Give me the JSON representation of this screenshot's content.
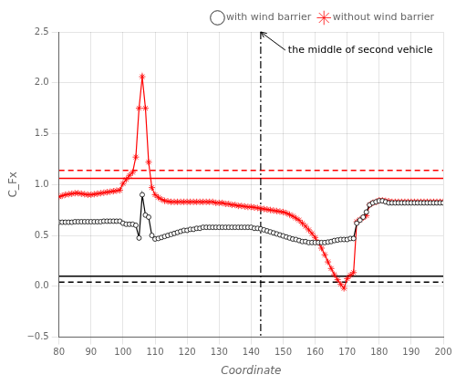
{
  "chart_data": {
    "type": "line",
    "xlabel": "Coordinate",
    "ylabel": "C_Fx",
    "xlim": [
      80,
      200
    ],
    "ylim": [
      -0.5,
      2.5
    ],
    "xticks": [
      80,
      90,
      100,
      110,
      120,
      130,
      140,
      150,
      160,
      170,
      180,
      190,
      200
    ],
    "yticks": [
      {
        "value": -0.5,
        "label": "−0.5"
      },
      {
        "value": 0.0,
        "label": "0.0"
      },
      0.5,
      {
        "value": 1.0,
        "label": "1.0"
      },
      1.5,
      {
        "value": 2.0,
        "label": "2.0"
      },
      2.5
    ],
    "grid": true,
    "legend": "upper right",
    "x": [
      80,
      81,
      82,
      83,
      84,
      85,
      86,
      87,
      88,
      89,
      90,
      91,
      92,
      93,
      94,
      95,
      96,
      97,
      98,
      99,
      100,
      101,
      102,
      103,
      104,
      105,
      106,
      107,
      108,
      109,
      110,
      111,
      112,
      113,
      114,
      115,
      116,
      117,
      118,
      119,
      120,
      121,
      122,
      123,
      124,
      125,
      126,
      127,
      128,
      129,
      130,
      131,
      132,
      133,
      134,
      135,
      136,
      137,
      138,
      139,
      140,
      141,
      142,
      143,
      144,
      145,
      146,
      147,
      148,
      149,
      150,
      151,
      152,
      153,
      154,
      155,
      156,
      157,
      158,
      159,
      160,
      161,
      162,
      163,
      164,
      165,
      166,
      167,
      168,
      169,
      170,
      171,
      172,
      173,
      174,
      175,
      176,
      177,
      178,
      179,
      180,
      181,
      182,
      183,
      184,
      185,
      186,
      187,
      188,
      189,
      190,
      191,
      192,
      193,
      194,
      195,
      196,
      197,
      198,
      199,
      200
    ],
    "series": [
      {
        "name": "with wind barrier",
        "color": "black",
        "marker": "circle",
        "line_style": "solid",
        "values": [
          0.63,
          0.63,
          0.63,
          0.63,
          0.63,
          0.635,
          0.635,
          0.635,
          0.635,
          0.635,
          0.635,
          0.635,
          0.635,
          0.635,
          0.64,
          0.64,
          0.64,
          0.64,
          0.64,
          0.64,
          0.62,
          0.61,
          0.61,
          0.61,
          0.6,
          0.475,
          0.9,
          0.7,
          0.68,
          0.5,
          0.465,
          0.47,
          0.48,
          0.49,
          0.5,
          0.51,
          0.52,
          0.53,
          0.54,
          0.55,
          0.55,
          0.56,
          0.56,
          0.57,
          0.57,
          0.58,
          0.58,
          0.58,
          0.58,
          0.58,
          0.58,
          0.58,
          0.58,
          0.58,
          0.58,
          0.58,
          0.58,
          0.58,
          0.58,
          0.58,
          0.58,
          0.57,
          0.57,
          0.565,
          0.555,
          0.545,
          0.535,
          0.525,
          0.515,
          0.505,
          0.495,
          0.485,
          0.475,
          0.465,
          0.46,
          0.45,
          0.44,
          0.44,
          0.43,
          0.43,
          0.43,
          0.43,
          0.43,
          0.43,
          0.435,
          0.44,
          0.45,
          0.455,
          0.46,
          0.46,
          0.46,
          0.47,
          0.47,
          0.62,
          0.65,
          0.68,
          0.73,
          0.8,
          0.82,
          0.83,
          0.84,
          0.84,
          0.83,
          0.82,
          0.82,
          0.82,
          0.82,
          0.82,
          0.82,
          0.82,
          0.82,
          0.82,
          0.82,
          0.82,
          0.82,
          0.82,
          0.82,
          0.82,
          0.82,
          0.82,
          0.82
        ]
      },
      {
        "name": "without wind barrier",
        "color": "red",
        "marker": "star",
        "line_style": "solid",
        "values": [
          0.88,
          0.89,
          0.9,
          0.905,
          0.91,
          0.915,
          0.915,
          0.91,
          0.905,
          0.9,
          0.9,
          0.905,
          0.91,
          0.915,
          0.92,
          0.925,
          0.93,
          0.935,
          0.94,
          0.945,
          1.01,
          1.05,
          1.09,
          1.12,
          1.27,
          1.75,
          2.06,
          1.75,
          1.22,
          0.97,
          0.9,
          0.875,
          0.855,
          0.84,
          0.835,
          0.83,
          0.83,
          0.83,
          0.83,
          0.83,
          0.83,
          0.83,
          0.83,
          0.83,
          0.83,
          0.83,
          0.83,
          0.83,
          0.83,
          0.82,
          0.82,
          0.82,
          0.81,
          0.81,
          0.8,
          0.8,
          0.79,
          0.79,
          0.785,
          0.78,
          0.78,
          0.775,
          0.77,
          0.765,
          0.76,
          0.755,
          0.75,
          0.745,
          0.74,
          0.735,
          0.73,
          0.72,
          0.705,
          0.69,
          0.67,
          0.65,
          0.62,
          0.59,
          0.555,
          0.52,
          0.48,
          0.43,
          0.375,
          0.31,
          0.24,
          0.175,
          0.115,
          0.065,
          0.02,
          -0.02,
          0.075,
          0.11,
          0.135,
          0.635,
          0.655,
          0.675,
          0.695,
          0.8,
          0.82,
          0.83,
          0.845,
          0.845,
          0.84,
          0.835,
          0.83,
          0.83,
          0.83,
          0.83,
          0.83,
          0.83,
          0.83,
          0.83,
          0.83,
          0.83,
          0.83,
          0.83,
          0.83,
          0.83,
          0.83,
          0.83,
          0.83
        ]
      }
    ],
    "hlines": [
      {
        "value": 1.06,
        "color": "red",
        "line_style": "solid"
      },
      {
        "value": 1.14,
        "color": "red",
        "line_style": "dashed"
      },
      {
        "value": 0.1,
        "color": "black",
        "line_style": "solid"
      },
      {
        "value": 0.04,
        "color": "black",
        "line_style": "dashed"
      }
    ],
    "vlines": [
      {
        "value": 143,
        "color": "black",
        "line_style": "dashdot"
      }
    ],
    "annotations": [
      {
        "text": "the middle of second vehicle",
        "x": 143,
        "y": 2.5
      }
    ]
  }
}
